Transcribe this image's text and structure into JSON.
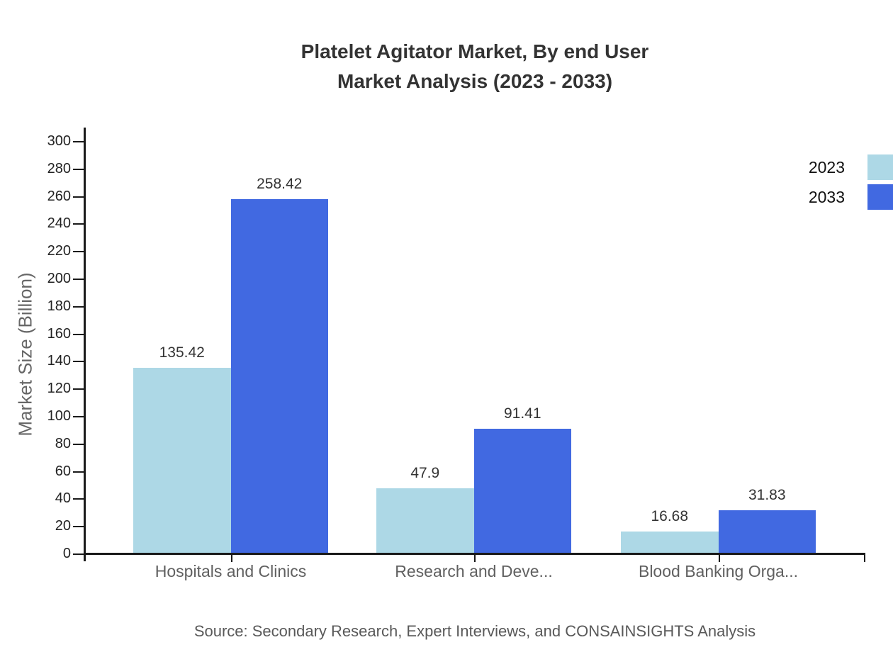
{
  "title": {
    "line1": "Platelet Agitator Market, By end User",
    "line2": "Market Analysis (2023 - 2033)"
  },
  "source": "Source: Secondary Research, Expert Interviews, and CONSAINSIGHTS Analysis",
  "legend": [
    {
      "label": "2023",
      "color": "#ADD8E6"
    },
    {
      "label": "2033",
      "color": "#4169E1"
    }
  ],
  "colors": {
    "axis": "#1a1a1a",
    "title_text": "#333333",
    "tick_text": "#222222",
    "category_text": "#606060",
    "series_2023": "#ADD8E6",
    "series_2033": "#4169E1"
  },
  "chart_data": {
    "type": "bar",
    "title": "Platelet Agitator Market, By end User Market Analysis (2023 - 2033)",
    "categories": [
      "Hospitals and Clinics",
      "Research and Deve...",
      "Blood Banking Orga..."
    ],
    "series": [
      {
        "name": "2023",
        "color": "#ADD8E6",
        "values": [
          135.42,
          47.9,
          16.68
        ]
      },
      {
        "name": "2033",
        "color": "#4169E1",
        "values": [
          258.42,
          91.41,
          31.83
        ]
      }
    ],
    "value_labels": [
      "135.42",
      "258.42",
      "47.9",
      "91.41",
      "16.68",
      "31.83"
    ],
    "xlabel": "",
    "ylabel": "Market Size (Billion)",
    "ylim": [
      0,
      300
    ],
    "ytick_step": 20,
    "grid": false,
    "legend_position": "top-right"
  }
}
